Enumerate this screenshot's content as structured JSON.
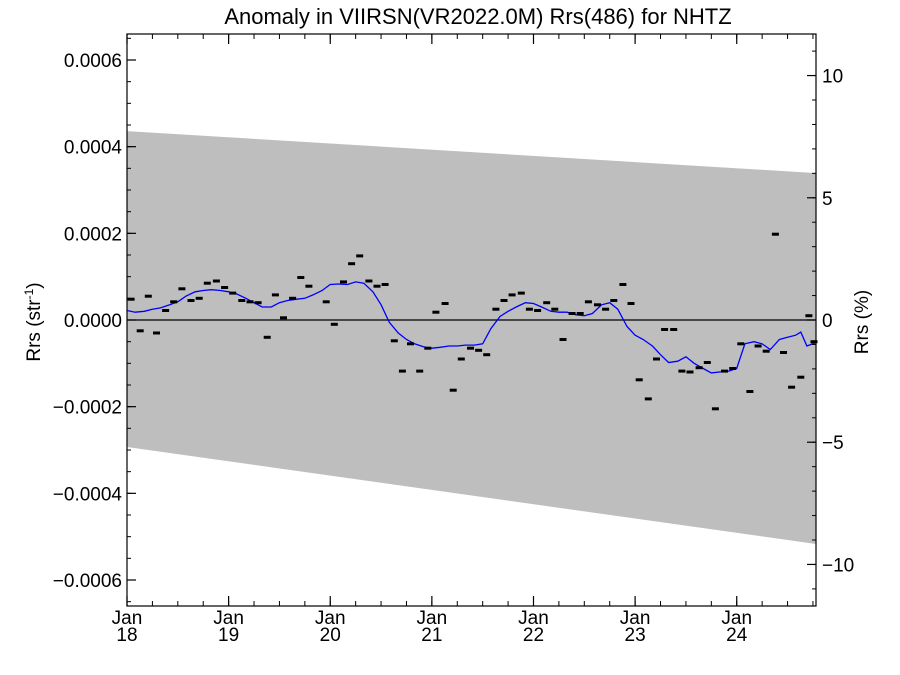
{
  "chart_data": {
    "type": "scatter",
    "title": "Anomaly in VIIRSN(VR2022.0M) Rrs(486) for NHTZ",
    "ylabel_left": {
      "base": "Rrs (str",
      "sup": "-1",
      "tail": ")"
    },
    "ylabel_right": "Rrs (%)",
    "xlim": [
      2018.0,
      2024.78
    ],
    "ylim": [
      -0.00066,
      0.00066
    ],
    "ylim_right": [
      -11.7,
      11.7
    ],
    "x_ticks": [
      {
        "x": 2018,
        "month": "Jan",
        "year": "18"
      },
      {
        "x": 2019,
        "month": "Jan",
        "year": "19"
      },
      {
        "x": 2020,
        "month": "Jan",
        "year": "20"
      },
      {
        "x": 2021,
        "month": "Jan",
        "year": "21"
      },
      {
        "x": 2022,
        "month": "Jan",
        "year": "22"
      },
      {
        "x": 2023,
        "month": "Jan",
        "year": "23"
      },
      {
        "x": 2024,
        "month": "Jan",
        "year": "24"
      }
    ],
    "y_ticks_left": [
      {
        "v": 0.0006,
        "label": "0.0006"
      },
      {
        "v": 0.0004,
        "label": "0.0004"
      },
      {
        "v": 0.0002,
        "label": "0.0002"
      },
      {
        "v": 0.0,
        "label": "0.0000"
      },
      {
        "v": -0.0002,
        "label": "−0.0002"
      },
      {
        "v": -0.0004,
        "label": "−0.0004"
      },
      {
        "v": -0.0006,
        "label": "−0.0006"
      }
    ],
    "y_ticks_right": [
      {
        "v": 10,
        "label": "10"
      },
      {
        "v": 5,
        "label": "5"
      },
      {
        "v": 0,
        "label": "0"
      },
      {
        "v": -5,
        "label": "−5"
      },
      {
        "v": -10,
        "label": "−10"
      }
    ],
    "band": {
      "upper": [
        [
          2018.0,
          0.000436
        ],
        [
          2024.78,
          0.000339
        ]
      ],
      "lower": [
        [
          2018.0,
          -0.000293
        ],
        [
          2024.78,
          -0.000517
        ]
      ],
      "color": "#bebebe"
    },
    "zero_line": 0.0,
    "series": [
      {
        "kind": "points",
        "color": "#000000",
        "values": [
          [
            2018.04,
            4.8e-05
          ],
          [
            2018.13,
            -2.5e-05
          ],
          [
            2018.21,
            5.5e-05
          ],
          [
            2018.29,
            -3e-05
          ],
          [
            2018.38,
            2.2e-05
          ],
          [
            2018.46,
            4.2e-05
          ],
          [
            2018.54,
            7.2e-05
          ],
          [
            2018.63,
            4.5e-05
          ],
          [
            2018.71,
            5e-05
          ],
          [
            2018.79,
            8.5e-05
          ],
          [
            2018.88,
            9e-05
          ],
          [
            2018.96,
            7.5e-05
          ],
          [
            2019.04,
            6.2e-05
          ],
          [
            2019.13,
            4.5e-05
          ],
          [
            2019.21,
            4.2e-05
          ],
          [
            2019.29,
            4e-05
          ],
          [
            2019.38,
            -4e-05
          ],
          [
            2019.46,
            5.8e-05
          ],
          [
            2019.54,
            5e-06
          ],
          [
            2019.63,
            5e-05
          ],
          [
            2019.71,
            9.8e-05
          ],
          [
            2019.79,
            7.8e-05
          ],
          [
            2019.96,
            4.2e-05
          ],
          [
            2020.04,
            -1e-05
          ],
          [
            2020.13,
            8.8e-05
          ],
          [
            2020.21,
            0.00013
          ],
          [
            2020.29,
            0.000148
          ],
          [
            2020.38,
            9e-05
          ],
          [
            2020.46,
            7.8e-05
          ],
          [
            2020.54,
            8.2e-05
          ],
          [
            2020.63,
            -4.8e-05
          ],
          [
            2020.71,
            -0.000118
          ],
          [
            2020.79,
            -5.5e-05
          ],
          [
            2020.88,
            -0.000118
          ],
          [
            2020.96,
            -6.5e-05
          ],
          [
            2021.04,
            1.8e-05
          ],
          [
            2021.13,
            3.8e-05
          ],
          [
            2021.21,
            -0.000162
          ],
          [
            2021.29,
            -9e-05
          ],
          [
            2021.38,
            -6.5e-05
          ],
          [
            2021.46,
            -7e-05
          ],
          [
            2021.54,
            -8e-05
          ],
          [
            2021.63,
            2.5e-05
          ],
          [
            2021.71,
            4.5e-05
          ],
          [
            2021.79,
            5.8e-05
          ],
          [
            2021.88,
            6.2e-05
          ],
          [
            2021.96,
            2.5e-05
          ],
          [
            2022.04,
            2.2e-05
          ],
          [
            2022.13,
            4e-05
          ],
          [
            2022.21,
            2.5e-05
          ],
          [
            2022.29,
            -4.5e-05
          ],
          [
            2022.38,
            1.5e-05
          ],
          [
            2022.46,
            1.5e-05
          ],
          [
            2022.54,
            4.2e-05
          ],
          [
            2022.63,
            3.5e-05
          ],
          [
            2022.71,
            2.5e-05
          ],
          [
            2022.79,
            4.5e-05
          ],
          [
            2022.88,
            8.2e-05
          ],
          [
            2022.96,
            3.8e-05
          ],
          [
            2023.04,
            -0.000138
          ],
          [
            2023.13,
            -0.000182
          ],
          [
            2023.21,
            -9e-05
          ],
          [
            2023.29,
            -2.2e-05
          ],
          [
            2023.38,
            -2.2e-05
          ],
          [
            2023.46,
            -0.000118
          ],
          [
            2023.54,
            -0.00012
          ],
          [
            2023.63,
            -0.00011
          ],
          [
            2023.71,
            -9.8e-05
          ],
          [
            2023.79,
            -0.000205
          ],
          [
            2023.88,
            -0.000118
          ],
          [
            2023.96,
            -0.000112
          ],
          [
            2024.04,
            -5.5e-05
          ],
          [
            2024.13,
            -0.000165
          ],
          [
            2024.21,
            -6e-05
          ],
          [
            2024.29,
            -7.2e-05
          ],
          [
            2024.38,
            0.000198
          ],
          [
            2024.46,
            -7.5e-05
          ],
          [
            2024.54,
            -0.000155
          ],
          [
            2024.63,
            -0.000132
          ],
          [
            2024.71,
            1e-05
          ],
          [
            2024.76,
            -5e-05
          ]
        ]
      },
      {
        "kind": "smooth",
        "color": "#0000ff",
        "values": [
          [
            2018.0,
            2.2e-05
          ],
          [
            2018.08,
            1.8e-05
          ],
          [
            2018.17,
            2e-05
          ],
          [
            2018.25,
            2.5e-05
          ],
          [
            2018.33,
            2.8e-05
          ],
          [
            2018.42,
            3.5e-05
          ],
          [
            2018.5,
            4.2e-05
          ],
          [
            2018.58,
            5.5e-05
          ],
          [
            2018.67,
            6.5e-05
          ],
          [
            2018.75,
            6.8e-05
          ],
          [
            2018.83,
            7e-05
          ],
          [
            2018.92,
            6.8e-05
          ],
          [
            2019.0,
            6.5e-05
          ],
          [
            2019.08,
            6e-05
          ],
          [
            2019.17,
            5e-05
          ],
          [
            2019.25,
            4e-05
          ],
          [
            2019.33,
            3e-05
          ],
          [
            2019.42,
            3e-05
          ],
          [
            2019.5,
            4e-05
          ],
          [
            2019.58,
            4.5e-05
          ],
          [
            2019.67,
            4.8e-05
          ],
          [
            2019.75,
            5e-05
          ],
          [
            2019.83,
            5.8e-05
          ],
          [
            2019.92,
            6.8e-05
          ],
          [
            2020.0,
            8.2e-05
          ],
          [
            2020.08,
            8.3e-05
          ],
          [
            2020.17,
            8.2e-05
          ],
          [
            2020.25,
            8.8e-05
          ],
          [
            2020.33,
            8.5e-05
          ],
          [
            2020.42,
            6.5e-05
          ],
          [
            2020.5,
            3.5e-05
          ],
          [
            2020.58,
            -5e-06
          ],
          [
            2020.67,
            -3e-05
          ],
          [
            2020.75,
            -4.5e-05
          ],
          [
            2020.83,
            -5.5e-05
          ],
          [
            2020.92,
            -6.2e-05
          ],
          [
            2021.0,
            -6.5e-05
          ],
          [
            2021.08,
            -6.3e-05
          ],
          [
            2021.17,
            -6e-05
          ],
          [
            2021.25,
            -6e-05
          ],
          [
            2021.33,
            -5.8e-05
          ],
          [
            2021.42,
            -5.8e-05
          ],
          [
            2021.5,
            -5.5e-05
          ],
          [
            2021.58,
            -2e-05
          ],
          [
            2021.67,
            8e-06
          ],
          [
            2021.75,
            2e-05
          ],
          [
            2021.83,
            3e-05
          ],
          [
            2021.92,
            4e-05
          ],
          [
            2022.0,
            3.8e-05
          ],
          [
            2022.08,
            3e-05
          ],
          [
            2022.17,
            2e-05
          ],
          [
            2022.25,
            1.8e-05
          ],
          [
            2022.33,
            1.8e-05
          ],
          [
            2022.42,
            1.2e-05
          ],
          [
            2022.5,
            1e-05
          ],
          [
            2022.58,
            1.5e-05
          ],
          [
            2022.67,
            3.5e-05
          ],
          [
            2022.75,
            4e-05
          ],
          [
            2022.83,
            2.5e-05
          ],
          [
            2022.92,
            -1.5e-05
          ],
          [
            2023.0,
            -3.5e-05
          ],
          [
            2023.08,
            -4.5e-05
          ],
          [
            2023.17,
            -6e-05
          ],
          [
            2023.25,
            -8e-05
          ],
          [
            2023.33,
            -9.8e-05
          ],
          [
            2023.42,
            -9.5e-05
          ],
          [
            2023.5,
            -8.5e-05
          ],
          [
            2023.58,
            -0.0001
          ],
          [
            2023.67,
            -0.000112
          ],
          [
            2023.75,
            -0.000122
          ],
          [
            2023.83,
            -0.00012
          ],
          [
            2023.92,
            -0.000118
          ],
          [
            2024.0,
            -0.000112
          ],
          [
            2024.08,
            -5.5e-05
          ],
          [
            2024.17,
            -5e-05
          ],
          [
            2024.25,
            -5.5e-05
          ],
          [
            2024.33,
            -6.8e-05
          ],
          [
            2024.42,
            -4.5e-05
          ],
          [
            2024.5,
            -4e-05
          ],
          [
            2024.58,
            -3.5e-05
          ],
          [
            2024.63,
            -2.8e-05
          ],
          [
            2024.69,
            -6e-05
          ],
          [
            2024.78,
            -5.2e-05
          ]
        ]
      }
    ],
    "grid": false,
    "legend": "none"
  }
}
